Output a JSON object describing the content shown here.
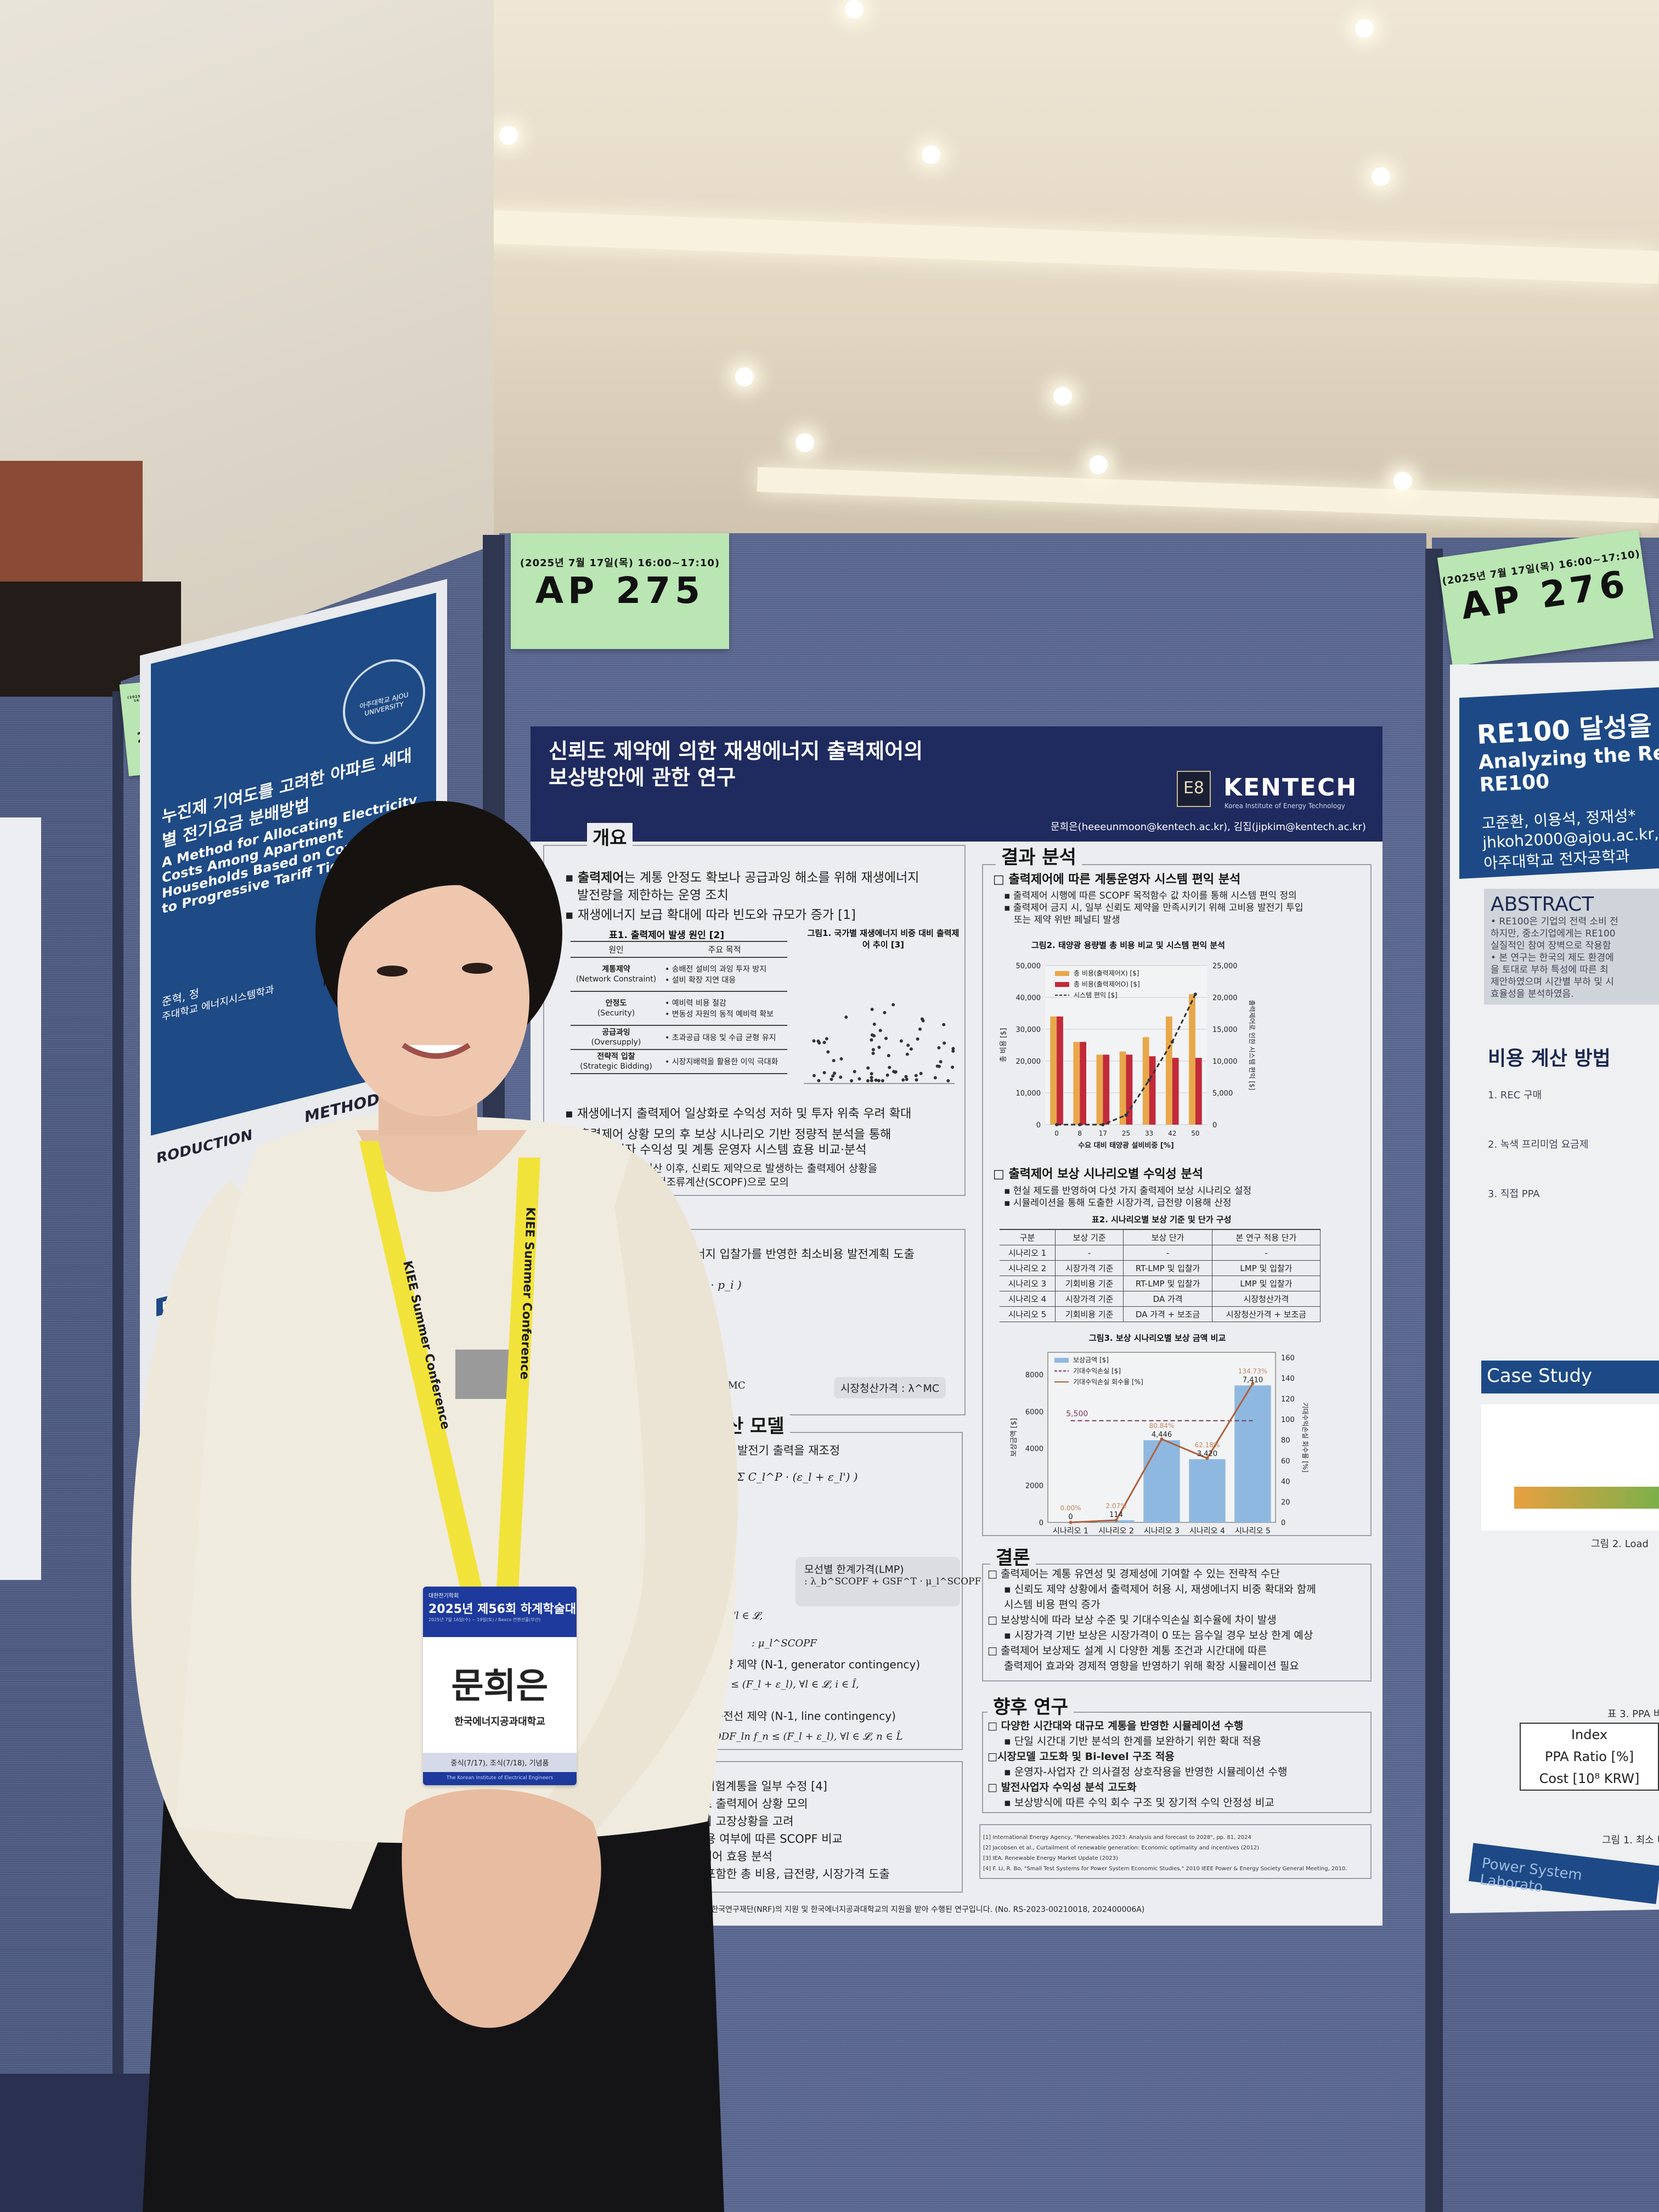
{
  "booths": {
    "ap274": {
      "time": "(2025년 7월 17일(목) 16:00~17:10)",
      "number": "AP 274"
    },
    "ap275": {
      "time": "(2025년 7월 17일(목) 16:00~17:10)",
      "number": "AP 275"
    },
    "ap276": {
      "time": "(2025년 7월 17일(목) 16:00~17:10)",
      "number": "AP 276"
    }
  },
  "poster": {
    "title_line1": "신뢰도 제약에 의한 재생에너지 출력제어의",
    "title_line2": "보상방안에 관한 연구",
    "logo_mark": "E8",
    "logo": "KENTECH",
    "logo_sub": "Korea Institute of Energy Technology",
    "authors": "문희은(heeeunmoon@kentech.ac.kr), 김집(jipkim@kentech.ac.kr)",
    "overview": {
      "heading": "개요",
      "b1_bold": "출력제어",
      "b1": "는 계통 안정도 확보나 공급과잉 해소를 위해 재생에너지",
      "b1_cont": "발전량을 제한하는 운영 조치",
      "b2": "재생에너지 보급 확대에 따라 빈도와 규모가 증가 [1]",
      "table_title": "표1. 출력제어 발생 원인 [2]",
      "table_headers": [
        "원인",
        "주요 목적"
      ],
      "table_rows": [
        {
          "cause": "계통제약",
          "cause_en": "(Network Constraint)",
          "purpose": "• 송배전 설비의 과잉 투자 방지\n• 설비 확장 지연 대응"
        },
        {
          "cause": "안정도",
          "cause_en": "(Security)",
          "purpose": "• 예비력 비용 절감\n• 변동성 자원의 동적 예비력 확보"
        },
        {
          "cause": "공급과잉",
          "cause_en": "(Oversupply)",
          "purpose": "• 초과공급 대응 및 수급 균형 유지"
        },
        {
          "cause": "전략적 입찰",
          "cause_en": "(Strategic Bidding)",
          "purpose": "• 시장지배력을 활용한 이익 극대화"
        }
      ],
      "fig1_title": "그림1. 국가별 재생에너지 비중 대비 출력제어 추이 [3]",
      "b3": "재생에너지 출력제어 일상화로 수익성 저하 및 투자 위축 우려 확대",
      "arrow1": "출력제어 상황 모의 후 보상 시나리오 기반 정량적 분석을 통해",
      "arrow1_cont": "발전사업자 수익성 및 계통 운영자 시스템 효용 비교·분석",
      "sub1": "하루전 시장청산 이후, 신뢰도 제약으로 발생하는 출력제어 상황을",
      "sub1_cont": "신뢰도 제약 최적조류계산(SCOPF)으로 모의"
    },
    "model": {
      "heading": "모델",
      "line1": "에너지 입찰가를 반영한 최소비용 발전계획 도출",
      "formula1": "b_i · p_i )",
      "lambda_partial": "λ^MC",
      "clearing_price": "시장청산가격 : λ^MC"
    },
    "scopf": {
      "heading": "조류계산 모델",
      "line1": "반영하여 발전기 출력을 재조정",
      "formula1": "+ Σ C_l^P · (ε_l + ε_l') )",
      "lmp_label": "모선별 한계가격(LMP)",
      "lmp_formula": ": λ_b^SCOPF + GSF^T · μ_l^SCOPF",
      "forall1": "∀l ∈ 𝓛,",
      "mu": ": μ_l^SCOPF",
      "gen_constraint": "용량 제약 (N-1, generator contingency)",
      "gen_formula": "p_i ≤ (F_l + ε_l),   ∀l ∈ 𝓛, i ∈ Î,",
      "line_constraint": "송전선 제약 (N-1, line contingency)",
      "line_formula": "ODF_ln f_n ≤ (F_l + ε_l),   ∀l ∈ 𝓛, n ∈ L̂"
    },
    "simulation": {
      "lines": [
        "bus 시험계통을 일부 수정 [4]",
        "준으로 출력제어 상황 모의",
        "전기의 고장상황을 고려",
        "어 허용 여부에 따른 SCOPF 비교",
        "출력제어 효용 분석",
        "용을 포함한 총 비용, 급전량, 시장가격 도출"
      ]
    },
    "results": {
      "heading": "결과 분석",
      "sub1": "□ 출력제어에 따른 계통운영자 시스템 편익 분석",
      "sub1_b1": "▪ 출력제어 시행에 따른 SCOPF 목적함수 값 차이를 통해 시스템 편익 정의",
      "sub1_b2": "▪ 출력제어 금지 시, 일부 신뢰도 제약을 만족시키기 위해 고비용 발전기 투입",
      "sub1_b2_cont": "또는 제약 위반 페널티 발생",
      "sub2": "□ 출력제어 보상 시나리오별 수익성 분석",
      "sub2_b1": "▪ 현실 제도를 반영하여 다섯 가지 출력제어 보상 시나리오 설정",
      "sub2_b2": "▪ 시뮬레이션을 통해 도출한 시장가격, 급전량 이용해 산정",
      "table2_title": "표2. 시나리오별 보상 기준 및 단가 구성",
      "table2_headers": [
        "구분",
        "보상 기준",
        "보상 단가",
        "본 연구 적용 단가"
      ],
      "table2_rows": [
        [
          "시나리오 1",
          "-",
          "-",
          "-"
        ],
        [
          "시나리오 2",
          "시장가격 기준",
          "RT-LMP 및 입찰가",
          "LMP 및 입찰가"
        ],
        [
          "시나리오 3",
          "기회비용 기준",
          "RT-LMP 및 입찰가",
          "LMP 및 입찰가"
        ],
        [
          "시나리오 4",
          "시장가격 기준",
          "DA 가격",
          "시장청산가격"
        ],
        [
          "시나리오 5",
          "기회비용 기준",
          "DA 가격 + 보조금",
          "시장청산가격 + 보조금"
        ]
      ]
    },
    "conclusion": {
      "heading": "결론",
      "lines": [
        "□ 출력제어는 계통 유연성 및 경제성에 기여할 수 있는 전략적 수단",
        "▪ 신뢰도 제약 상황에서 출력제어 허용 시, 재생에너지 비중 확대와 함께",
        "시스템 비용 편익 증가",
        "□ 보상방식에 따라 보상 수준 및 기대수익손실 회수율에 차이 발생",
        "▪ 시장가격 기반 보상은 시장가격이 0 또는 음수일 경우 보상 한계 예상",
        "□ 출력제어 보상제도 설계 시 다양한 계통 조건과 시간대에 따른",
        "출력제어 효과와 경제적 영향을 반영하기 위해 확장 시뮬레이션 필요"
      ]
    },
    "future": {
      "heading": "향후 연구",
      "lines": [
        "□ 다양한 시간대와 대규모 계통을 반영한 시뮬레이션 수행",
        "▪ 단일 시간대 기반 분석의 한계를 보완하기 위한 확대 적용",
        "□시장모델 고도화 및 Bi-level 구조 적용",
        "▪ 운영자-사업자 간 의사결정 상호작용을 반영한 시뮬레이션 수행",
        "□ 발전사업자 수익성 분석 고도화",
        "▪ 보상방식에 따른 수익 회수 구조 및 장기적 수익 안정성 비교"
      ]
    },
    "references": [
      "[1] International Energy Agency, \"Renewables 2023: Analysis and forecast to 2028\", pp. 81, 2024",
      "[2] Jacobsen et al., Curtailment of renewable generation: Economic optimality and incentives (2012)",
      "[3] IEA. Renewable Energy Market Update (2023)",
      "[4] F. Li, R. Bo, \"Small Test Systems for Power System Economic Studies,\" 2010 IEEE Power & Energy Society General Meeting, 2010."
    ],
    "funding": "본 연구는 정부(과학기술정보통신부)의 재원으로 한국연구재단(NRF)의 지원 및 한국에너지공과대학교의 지원을 받아 수행된 연구입니다. (No. RS-2023-00210018, 202400006A)"
  },
  "chart_data": [
    {
      "type": "bar",
      "title": "그림2. 태양광 용량별 총 비용 비교 및 시스템 편익 분석",
      "xlabel": "수요 대비 태양광 설비비중 [%]",
      "ylabel": "총 비용 [$]",
      "y2label": "출력제어로 인한 시스템 편익 [$]",
      "categories": [
        "0",
        "8",
        "17",
        "25",
        "33",
        "42",
        "50"
      ],
      "ylim": [
        0,
        50000
      ],
      "yticks": [
        "0",
        "10,000",
        "20,000",
        "30,000",
        "40,000",
        "50,000"
      ],
      "y2lim": [
        0,
        25000
      ],
      "y2ticks": [
        "0",
        "5,000",
        "10,000",
        "15,000",
        "20,000",
        "25,000"
      ],
      "legend": "top-left",
      "series": [
        {
          "name": "총 비용(출력제어X) [$]",
          "type": "bar",
          "color": "#e8a84a",
          "values": [
            34000,
            26000,
            22000,
            23000,
            27500,
            34000,
            41000
          ]
        },
        {
          "name": "총 비용(출력제어O) [$]",
          "type": "bar",
          "color": "#c22a3a",
          "values": [
            34000,
            26000,
            22000,
            22000,
            21500,
            21000,
            21000
          ]
        },
        {
          "name": "시스템 편익 [$]",
          "type": "line",
          "axis": "right",
          "style": "dashed",
          "color": "#333333",
          "values": [
            0,
            0,
            0,
            1500,
            7000,
            13000,
            20500
          ]
        }
      ]
    },
    {
      "type": "bar",
      "title": "그림3. 보상 시나리오별 보상 금액 비교",
      "ylabel": "보상금액 [$]",
      "y2label": "기대수익손실 회수율 [%]",
      "categories": [
        "시나리오 1",
        "시나리오 2",
        "시나리오 3",
        "시나리오 4",
        "시나리오 5"
      ],
      "ylim": [
        0,
        9200
      ],
      "yticks": [
        "0",
        "2000",
        "4000",
        "6000",
        "8000"
      ],
      "y2lim": [
        0,
        165
      ],
      "y2ticks": [
        "0",
        "20",
        "40",
        "60",
        "80",
        "100",
        "120",
        "140",
        "160"
      ],
      "legend": "top-left",
      "series": [
        {
          "name": "보상금액 [$]",
          "type": "bar",
          "color": "#8fb8e0",
          "values": [
            0,
            114,
            4446,
            3420,
            7410
          ],
          "labels": [
            "0",
            "114",
            "4,446",
            "3,420",
            "7,410"
          ]
        },
        {
          "name": "기대수익손실 [$]",
          "type": "hline",
          "style": "dashed",
          "color": "#7a3a5a",
          "value": 5500,
          "label": "5,500"
        },
        {
          "name": "기대수익손실 회수율 [%]",
          "type": "line",
          "axis": "right",
          "color": "#b0603a",
          "values": [
            0.0,
            2.07,
            80.84,
            62.18,
            134.73
          ],
          "labels": [
            "0.00%",
            "2.07%",
            "80.84%",
            "62.18%",
            "134.73%"
          ]
        }
      ]
    }
  ],
  "badge": {
    "org": "대한전기학회",
    "event": "2025년 제56회 하계학술대회",
    "dates": "2025년 7월 16일(수) ~ 19일(토) / Bexco 컨벤션홀(부산)",
    "name": "문희은",
    "affiliation": "한국에너지공과대학교",
    "perks": "중식(7/17), 조식(7/18), 기념품",
    "footer": "The Korean Institute of Electrical Engineers"
  },
  "lanyard": {
    "text": "KIEE Summer Conference",
    "color": "#f2e33a"
  },
  "left_poster": {
    "title_ko": "누진제 기여도를 고려한 아파트 세대별 전기요금 분배방법",
    "title_en": "A Method for Allocating Electricity Costs Among Apartment Households Based on Contribution to Progressive Tariff Tiers",
    "authors": "준혁, 정",
    "affiliation": "주대학교 에너지시스템학과",
    "logo": "아주대학교 AJOU UNIVERSITY",
    "intro": "RODUCTION",
    "method": "METHODOLO",
    "results": "RESULTS"
  },
  "right_poster": {
    "title_ko": "RE100 달성을",
    "title_en": "Analyzing the Re",
    "title_en2": "RE100",
    "authors": "고준환, 이용석, 정재성*",
    "email": "jhkoh2000@ajou.ac.kr,",
    "affiliation": "아주대학교 전자공학과",
    "abstract_heading": "ABSTRACT",
    "abstract_lines": [
      "• RE100은 기업의 전력 소비 전",
      "하지만, 중소기업에게는 RE100",
      "실질적인 참여 장벽으로 작용함",
      "• 본 연구는 한국의 제도 환경에",
      "을 토대로 부하 특성에 따른 최",
      "제안하였으며 시간별 부하 및 시",
      "효율성을 분석하였음."
    ],
    "method_heading": "비용 계산 방법",
    "method_lines": [
      "1. REC 구매",
      "2. 녹색 프리미엄 요금제",
      "3. 직접 PPA"
    ],
    "case_heading": "Case Study",
    "fig2": "그림 2. Load",
    "table3": "표 3. PPA 비",
    "table_rows": [
      "Index",
      "PPA Ratio [%]",
      "Cost [10⁸ KRW]"
    ],
    "fig1": "그림 1. 최소 비용과",
    "footer": "Power System Laborato"
  }
}
